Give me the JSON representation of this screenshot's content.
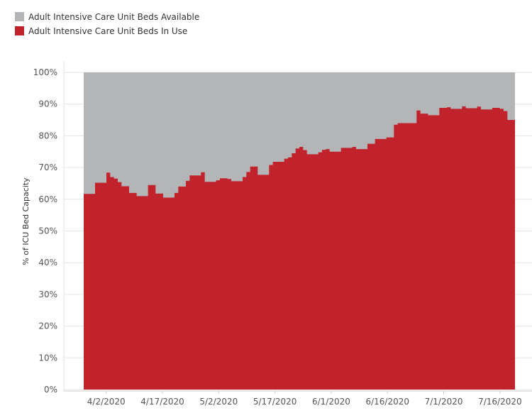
{
  "chart_data": {
    "type": "area",
    "stacked": true,
    "xlabel": "",
    "ylabel": "% of ICU Bed Capacity",
    "ylim": [
      0,
      100
    ],
    "y_ticks": [
      "0%",
      "10%",
      "20%",
      "30%",
      "40%",
      "50%",
      "60%",
      "70%",
      "80%",
      "90%",
      "100%"
    ],
    "x_ticks": [
      "4/2/2020",
      "4/17/2020",
      "5/2/2020",
      "5/17/2020",
      "6/1/2020",
      "6/16/2020",
      "7/1/2020",
      "7/16/2020"
    ],
    "x_start": "3/27/2020",
    "x_end": "7/20/2020",
    "grid": true,
    "legend_position": "top-left",
    "series": [
      {
        "name": "Adult Intensive Care Unit Beds Available",
        "color": "#b4b5b6",
        "values": "remainder to 100%"
      },
      {
        "name": "Adult Intensive Care Unit Beds In Use",
        "color": "#c0232c",
        "values": [
          61.7,
          61.7,
          61.7,
          65.2,
          65.2,
          65.2,
          68.4,
          67.0,
          66.5,
          65.4,
          64.1,
          64.1,
          62.0,
          62.0,
          61.0,
          61.0,
          61.0,
          64.5,
          64.5,
          61.8,
          61.8,
          60.5,
          60.5,
          60.5,
          62.0,
          64.0,
          64.0,
          65.8,
          67.5,
          67.5,
          67.5,
          68.5,
          65.5,
          65.5,
          65.5,
          66.0,
          66.6,
          66.6,
          66.4,
          65.7,
          65.7,
          65.7,
          67.0,
          68.6,
          70.3,
          70.3,
          67.7,
          67.7,
          67.7,
          70.8,
          71.8,
          71.8,
          71.8,
          72.8,
          73.2,
          74.5,
          76.0,
          76.5,
          75.5,
          74.2,
          74.2,
          74.2,
          74.8,
          75.6,
          75.8,
          75.0,
          75.0,
          75.0,
          76.2,
          76.2,
          76.2,
          76.5,
          75.8,
          75.8,
          75.8,
          77.5,
          77.5,
          79.0,
          79.0,
          79.0,
          79.5,
          79.5,
          83.5,
          84.0,
          84.0,
          84.0,
          84.0,
          84.0,
          88.0,
          87.0,
          87.0,
          86.5,
          86.5,
          86.5,
          88.8,
          88.8,
          89.0,
          88.5,
          88.5,
          88.5,
          89.3,
          88.7,
          88.7,
          88.7,
          89.2,
          88.3,
          88.3,
          88.3,
          88.8,
          88.8,
          88.5,
          87.8,
          85.0,
          85.0
        ]
      }
    ]
  },
  "legend": {
    "items": [
      {
        "label": "Adult Intensive Care Unit Beds Available",
        "color": "#b4b5b6"
      },
      {
        "label": "Adult Intensive Care Unit Beds In Use",
        "color": "#c0232c"
      }
    ]
  }
}
